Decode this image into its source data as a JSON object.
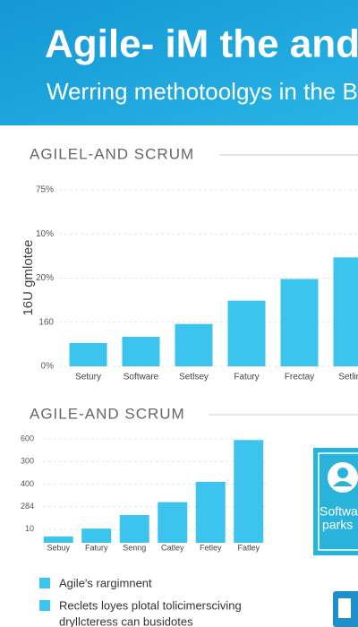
{
  "header": {
    "title": "Agile- iM the and",
    "subtitle": "Werring methotoolgys in the B"
  },
  "chart_data": [
    {
      "type": "bar",
      "title": "AGILEL-AND SCRUM",
      "y_label": "16U gmlotee",
      "categories": [
        "Setury",
        "Software",
        "Setlsey",
        "Fatury",
        "Frectay",
        "Setling"
      ],
      "values": [
        0.53,
        0.67,
        0.96,
        1.49,
        1.98,
        2.47
      ],
      "color": "#3cc3ee",
      "ylim": [
        0,
        4
      ],
      "yticks": [
        {
          "value": 0,
          "label": "0%"
        },
        {
          "value": 1,
          "label": "160"
        },
        {
          "value": 2,
          "label": "20%"
        },
        {
          "value": 3,
          "label": "10%"
        },
        {
          "value": 4,
          "label": "75%"
        }
      ],
      "grid": true
    },
    {
      "type": "bar",
      "title": "AGILE-AND SCRUM",
      "categories": [
        "Sebuy",
        "Fatury",
        "Senng",
        "Catley",
        "Fetley",
        "Fatley"
      ],
      "values": [
        0.28,
        0.63,
        1.23,
        1.8,
        2.7,
        4.55
      ],
      "color": "#3cc3ee",
      "ylim": [
        0,
        4.6
      ],
      "yticks": [
        {
          "value": 0.6,
          "label": "10"
        },
        {
          "value": 1.6,
          "label": "284"
        },
        {
          "value": 2.6,
          "label": "400"
        },
        {
          "value": 3.6,
          "label": "300"
        },
        {
          "value": 4.6,
          "label": "600"
        }
      ],
      "grid": true
    }
  ],
  "card": {
    "lines": [
      "Softwa",
      "parks"
    ]
  },
  "legend": [
    "Agile's rargimnent",
    "Reclets loyes plotal tolicimersciving",
    "dryllcteress can busidotes"
  ]
}
